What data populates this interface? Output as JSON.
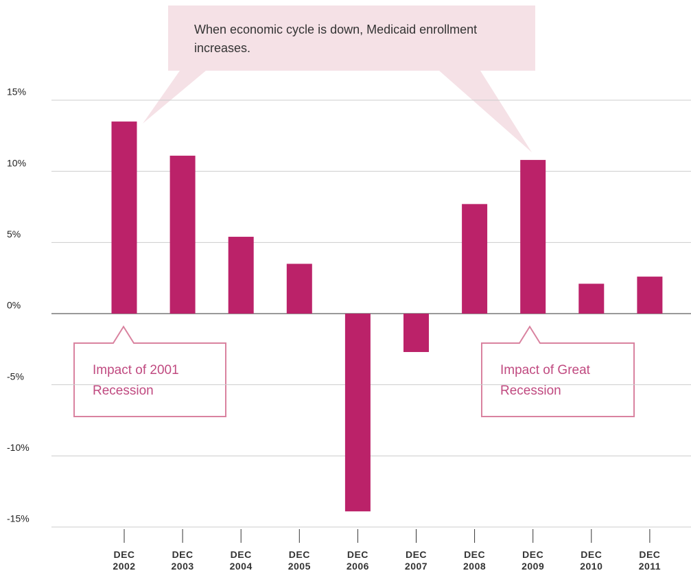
{
  "chart_data": {
    "type": "bar",
    "categories": [
      "DEC 2002",
      "DEC 2003",
      "DEC 2004",
      "DEC 2005",
      "DEC 2006",
      "DEC 2007",
      "DEC 2008",
      "DEC 2009",
      "DEC 2010",
      "DEC 2011"
    ],
    "values": [
      13.5,
      11.1,
      5.4,
      3.5,
      -13.9,
      -2.7,
      7.7,
      10.8,
      2.1,
      2.6
    ],
    "color": "#bb2269",
    "ylim": [
      -15,
      15
    ],
    "yticks": [
      {
        "value": -15,
        "label": "-15%"
      },
      {
        "value": -10,
        "label": "-10%"
      },
      {
        "value": -5,
        "label": "-5%"
      },
      {
        "value": 0,
        "label": "0%"
      },
      {
        "value": 5,
        "label": "5%"
      },
      {
        "value": 10,
        "label": "10%"
      },
      {
        "value": 15,
        "label": "15%"
      }
    ],
    "grid": true,
    "annotations": [
      {
        "text": "When economic cycle is down, Medicaid enrollment increases."
      },
      {
        "text": "Impact of 2001 Recession"
      },
      {
        "text": "Impact of Great Recession"
      }
    ]
  }
}
